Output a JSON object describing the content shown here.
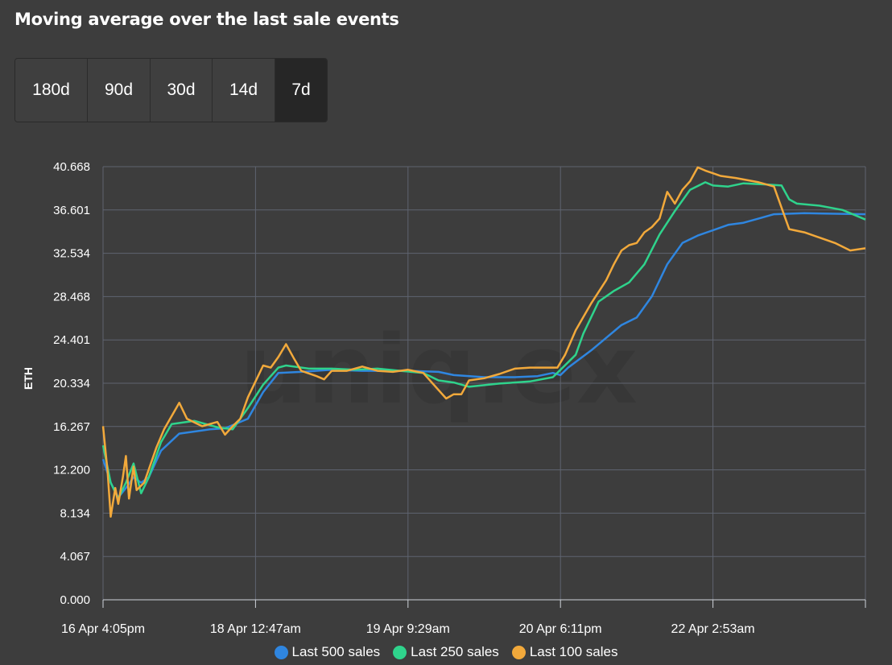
{
  "title": "Moving average over the last sale events",
  "range_buttons": [
    {
      "label": "180d",
      "active": false
    },
    {
      "label": "90d",
      "active": false
    },
    {
      "label": "30d",
      "active": false
    },
    {
      "label": "14d",
      "active": false
    },
    {
      "label": "7d",
      "active": true
    }
  ],
  "watermark": "uniq.ex",
  "colors": {
    "last_500": "#2f86e0",
    "last_250": "#2fd38c",
    "last_100": "#f2a93b",
    "grid": "#5f6470",
    "background": "#3d3d3d"
  },
  "chart_data": {
    "type": "line",
    "ylabel": "ETH",
    "ylim": [
      0,
      40.668
    ],
    "y_ticks": [
      "0.000",
      "4.067",
      "8.134",
      "12.200",
      "16.267",
      "20.334",
      "24.401",
      "28.468",
      "32.534",
      "36.601",
      "40.668"
    ],
    "x_ticks": [
      "16 Apr 4:05pm",
      "18 Apr 12:47am",
      "19 Apr 9:29am",
      "20 Apr 6:11pm",
      "22 Apr 2:53am"
    ],
    "xlim": [
      0,
      5
    ],
    "grid": true,
    "legend_position": "bottom",
    "series": [
      {
        "name": "Last 500 sales",
        "color_key": "last_500",
        "points": [
          [
            0,
            13.2
          ],
          [
            0.05,
            11.0
          ],
          [
            0.1,
            9.6
          ],
          [
            0.15,
            10.5
          ],
          [
            0.2,
            11.5
          ],
          [
            0.25,
            11.0
          ],
          [
            0.3,
            11.5
          ],
          [
            0.38,
            14.0
          ],
          [
            0.5,
            15.6
          ],
          [
            0.6,
            15.8
          ],
          [
            0.7,
            16.0
          ],
          [
            0.8,
            16.1
          ],
          [
            0.95,
            17.0
          ],
          [
            1.05,
            19.5
          ],
          [
            1.15,
            21.3
          ],
          [
            1.3,
            21.4
          ],
          [
            1.5,
            21.6
          ],
          [
            1.7,
            21.5
          ],
          [
            1.9,
            21.5
          ],
          [
            2.0,
            21.5
          ],
          [
            2.2,
            21.4
          ],
          [
            2.3,
            21.1
          ],
          [
            2.5,
            20.9
          ],
          [
            2.7,
            20.9
          ],
          [
            2.85,
            21.0
          ],
          [
            2.95,
            21.3
          ],
          [
            3.0,
            21.1
          ],
          [
            3.05,
            21.8
          ],
          [
            3.2,
            23.4
          ],
          [
            3.4,
            25.8
          ],
          [
            3.5,
            26.5
          ],
          [
            3.6,
            28.5
          ],
          [
            3.7,
            31.5
          ],
          [
            3.8,
            33.5
          ],
          [
            3.9,
            34.2
          ],
          [
            4.0,
            34.7
          ],
          [
            4.1,
            35.2
          ],
          [
            4.2,
            35.4
          ],
          [
            4.3,
            35.8
          ],
          [
            4.4,
            36.2
          ],
          [
            4.6,
            36.3
          ],
          [
            5.0,
            36.2
          ]
        ]
      },
      {
        "name": "Last 250 sales",
        "color_key": "last_250",
        "points": [
          [
            0,
            14.5
          ],
          [
            0.05,
            11.0
          ],
          [
            0.1,
            9.5
          ],
          [
            0.15,
            11.0
          ],
          [
            0.2,
            12.8
          ],
          [
            0.25,
            10.0
          ],
          [
            0.3,
            11.5
          ],
          [
            0.38,
            14.8
          ],
          [
            0.45,
            16.5
          ],
          [
            0.6,
            16.8
          ],
          [
            0.75,
            16.2
          ],
          [
            0.85,
            16.0
          ],
          [
            0.95,
            18.0
          ],
          [
            1.05,
            20.2
          ],
          [
            1.15,
            21.8
          ],
          [
            1.2,
            22.0
          ],
          [
            1.35,
            21.7
          ],
          [
            1.5,
            21.7
          ],
          [
            1.65,
            21.6
          ],
          [
            1.8,
            21.7
          ],
          [
            1.95,
            21.5
          ],
          [
            2.1,
            21.3
          ],
          [
            2.2,
            20.6
          ],
          [
            2.3,
            20.4
          ],
          [
            2.4,
            20.0
          ],
          [
            2.6,
            20.3
          ],
          [
            2.8,
            20.5
          ],
          [
            2.95,
            20.9
          ],
          [
            3.0,
            21.6
          ],
          [
            3.1,
            23.0
          ],
          [
            3.15,
            25.0
          ],
          [
            3.25,
            28.0
          ],
          [
            3.35,
            29.0
          ],
          [
            3.45,
            29.8
          ],
          [
            3.55,
            31.5
          ],
          [
            3.65,
            34.3
          ],
          [
            3.75,
            36.5
          ],
          [
            3.85,
            38.5
          ],
          [
            3.95,
            39.2
          ],
          [
            4.0,
            38.9
          ],
          [
            4.1,
            38.8
          ],
          [
            4.2,
            39.1
          ],
          [
            4.35,
            39.0
          ],
          [
            4.45,
            38.9
          ],
          [
            4.5,
            37.6
          ],
          [
            4.55,
            37.2
          ],
          [
            4.7,
            37.0
          ],
          [
            4.85,
            36.6
          ],
          [
            5.0,
            35.7
          ]
        ]
      },
      {
        "name": "Last 100 sales",
        "color_key": "last_100",
        "points": [
          [
            0,
            16.3
          ],
          [
            0.03,
            12.0
          ],
          [
            0.05,
            7.8
          ],
          [
            0.08,
            10.5
          ],
          [
            0.1,
            9.0
          ],
          [
            0.13,
            11.5
          ],
          [
            0.15,
            13.5
          ],
          [
            0.17,
            9.5
          ],
          [
            0.2,
            12.5
          ],
          [
            0.22,
            10.3
          ],
          [
            0.27,
            11.0
          ],
          [
            0.35,
            14.3
          ],
          [
            0.4,
            16.0
          ],
          [
            0.5,
            18.5
          ],
          [
            0.55,
            17.0
          ],
          [
            0.65,
            16.3
          ],
          [
            0.75,
            16.7
          ],
          [
            0.8,
            15.5
          ],
          [
            0.85,
            16.3
          ],
          [
            0.9,
            17.0
          ],
          [
            0.95,
            19.0
          ],
          [
            1.0,
            20.5
          ],
          [
            1.05,
            22.0
          ],
          [
            1.1,
            21.8
          ],
          [
            1.15,
            22.8
          ],
          [
            1.2,
            24.0
          ],
          [
            1.25,
            22.7
          ],
          [
            1.3,
            21.5
          ],
          [
            1.4,
            21.0
          ],
          [
            1.45,
            20.7
          ],
          [
            1.5,
            21.5
          ],
          [
            1.6,
            21.5
          ],
          [
            1.7,
            21.9
          ],
          [
            1.8,
            21.5
          ],
          [
            1.9,
            21.4
          ],
          [
            2.0,
            21.6
          ],
          [
            2.1,
            21.3
          ],
          [
            2.15,
            20.5
          ],
          [
            2.2,
            19.7
          ],
          [
            2.25,
            18.9
          ],
          [
            2.3,
            19.3
          ],
          [
            2.35,
            19.3
          ],
          [
            2.4,
            20.6
          ],
          [
            2.5,
            20.8
          ],
          [
            2.6,
            21.2
          ],
          [
            2.7,
            21.7
          ],
          [
            2.8,
            21.8
          ],
          [
            2.9,
            21.8
          ],
          [
            2.98,
            21.8
          ],
          [
            3.03,
            23.0
          ],
          [
            3.1,
            25.3
          ],
          [
            3.2,
            27.8
          ],
          [
            3.3,
            30.0
          ],
          [
            3.35,
            31.5
          ],
          [
            3.4,
            32.8
          ],
          [
            3.45,
            33.3
          ],
          [
            3.5,
            33.5
          ],
          [
            3.55,
            34.5
          ],
          [
            3.6,
            35.0
          ],
          [
            3.65,
            35.8
          ],
          [
            3.7,
            38.3
          ],
          [
            3.75,
            37.2
          ],
          [
            3.8,
            38.5
          ],
          [
            3.85,
            39.3
          ],
          [
            3.9,
            40.6
          ],
          [
            3.95,
            40.3
          ],
          [
            4.05,
            39.8
          ],
          [
            4.15,
            39.6
          ],
          [
            4.3,
            39.2
          ],
          [
            4.4,
            38.8
          ],
          [
            4.5,
            34.8
          ],
          [
            4.6,
            34.5
          ],
          [
            4.7,
            34.0
          ],
          [
            4.8,
            33.5
          ],
          [
            4.9,
            32.8
          ],
          [
            5.0,
            33.0
          ]
        ]
      }
    ]
  }
}
